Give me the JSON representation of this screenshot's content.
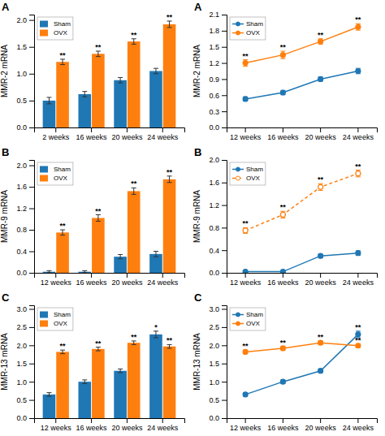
{
  "chart_data": [
    {
      "type": "bar",
      "title": "A",
      "categories": [
        "2 weeks",
        "16 weeks",
        "20 weeks",
        "24 weeks"
      ],
      "series": [
        {
          "name": "Sham",
          "values": [
            0.5,
            0.62,
            0.88,
            1.05
          ],
          "errors": [
            0.06,
            0.05,
            0.05,
            0.05
          ]
        },
        {
          "name": "OVX",
          "values": [
            1.22,
            1.37,
            1.6,
            1.92
          ],
          "errors": [
            0.05,
            0.05,
            0.05,
            0.06
          ],
          "annotations": [
            "**",
            "**",
            "**",
            "**"
          ]
        }
      ],
      "ylabel": "MMR-2 mRNA",
      "ylim": [
        0.0,
        2.1
      ],
      "yticks": [
        {
          "value": 0.0,
          "label": "0.0"
        },
        0.5,
        {
          "value": 1.0,
          "label": "1.0"
        },
        1.5,
        {
          "value": 2.0,
          "label": "2.0"
        }
      ],
      "legend": "upper left",
      "grid": false
    },
    {
      "type": "line",
      "title": "A",
      "categories": [
        "12 weeks",
        "16 weeks",
        "20 weeks",
        "24 weeks"
      ],
      "series": [
        {
          "name": "Sham",
          "values": [
            0.53,
            0.65,
            0.9,
            1.05
          ],
          "errors": [
            0.04,
            0.04,
            0.04,
            0.05
          ],
          "marker": "circle",
          "line_style": "solid"
        },
        {
          "name": "OVX",
          "values": [
            1.2,
            1.35,
            1.6,
            1.87
          ],
          "errors": [
            0.06,
            0.07,
            0.05,
            0.06
          ],
          "marker": "circle",
          "line_style": "solid",
          "annotations": [
            "**",
            "**",
            "**",
            "**"
          ]
        }
      ],
      "ylabel": "MMR-2 mRNA",
      "ylim": [
        0.0,
        2.1
      ],
      "yticks": [
        {
          "value": 0.0,
          "label": "0.0"
        },
        0.3,
        0.6,
        0.9,
        1.2,
        1.5,
        1.8,
        2.1
      ],
      "legend": "upper left",
      "grid": false
    },
    {
      "type": "bar",
      "title": "B",
      "categories": [
        "12 weeks",
        "16 weeks",
        "20 weeks",
        "24 weeks"
      ],
      "series": [
        {
          "name": "Sham",
          "values": [
            0.02,
            0.02,
            0.3,
            0.35
          ],
          "errors": [
            0.02,
            0.02,
            0.04,
            0.05
          ]
        },
        {
          "name": "OVX",
          "values": [
            0.75,
            1.02,
            1.52,
            1.74
          ],
          "errors": [
            0.05,
            0.06,
            0.06,
            0.06
          ],
          "annotations": [
            "**",
            "**",
            "**",
            "**"
          ]
        }
      ],
      "ylabel": "MMR-9 mRNA",
      "ylim": [
        0.0,
        2.1
      ],
      "yticks": [
        {
          "value": 0.0,
          "label": "0.0"
        },
        0.4,
        0.8,
        1.2,
        1.6,
        {
          "value": 2.0,
          "label": "2.0"
        }
      ],
      "legend": "upper left",
      "grid": false
    },
    {
      "type": "line",
      "title": "B",
      "categories": [
        "12 weeks",
        "16 weeks",
        "20 weeks",
        "24 weeks"
      ],
      "series": [
        {
          "name": "Sham",
          "values": [
            0.02,
            0.02,
            0.3,
            0.35
          ],
          "errors": [
            0.02,
            0.02,
            0.03,
            0.04
          ],
          "marker": "circle",
          "line_style": "solid"
        },
        {
          "name": "OVX",
          "values": [
            0.75,
            1.03,
            1.52,
            1.76
          ],
          "errors": [
            0.05,
            0.06,
            0.06,
            0.06
          ],
          "marker": "hollow-circle",
          "line_style": "dashed",
          "annotations": [
            "**",
            "**",
            "**",
            "**"
          ]
        }
      ],
      "ylabel": "MMR-9 mRNA",
      "ylim": [
        0.0,
        2.0
      ],
      "yticks": [
        {
          "value": 0.0,
          "label": "0.0"
        },
        0.4,
        0.8,
        1.2,
        1.6,
        {
          "value": 2.0,
          "label": "2.0"
        }
      ],
      "legend": "upper left",
      "grid": false
    },
    {
      "type": "bar",
      "title": "C",
      "categories": [
        "12 weeks",
        "16 weeks",
        "20 weeks",
        "24 weeks"
      ],
      "series": [
        {
          "name": "Sham",
          "values": [
            0.65,
            1.0,
            1.3,
            2.3
          ],
          "errors": [
            0.05,
            0.05,
            0.05,
            0.09
          ],
          "annotations": [
            null,
            null,
            null,
            "*"
          ]
        },
        {
          "name": "OVX",
          "values": [
            1.82,
            1.9,
            2.07,
            1.97
          ],
          "errors": [
            0.05,
            0.05,
            0.05,
            0.05
          ],
          "annotations": [
            "**",
            "**",
            "**",
            "**"
          ]
        }
      ],
      "ylabel": "MMR-13 mRNA",
      "ylim": [
        0.0,
        3.1
      ],
      "yticks": [
        {
          "value": 0.0,
          "label": "0.0"
        },
        0.5,
        {
          "value": 1.0,
          "label": "1.0"
        },
        1.5,
        {
          "value": 2.0,
          "label": "2.0"
        },
        2.5,
        {
          "value": 3.0,
          "label": "3.0"
        }
      ],
      "legend": "upper left",
      "grid": false
    },
    {
      "type": "line",
      "title": "C",
      "categories": [
        "12 weeks",
        "16 weeks",
        "20 weeks",
        "24 weeks"
      ],
      "series": [
        {
          "name": "Sham",
          "values": [
            0.65,
            1.0,
            1.3,
            2.3
          ],
          "errors": [
            0.05,
            0.05,
            0.05,
            0.09
          ],
          "marker": "circle",
          "line_style": "solid",
          "annotations": [
            null,
            null,
            null,
            "**"
          ]
        },
        {
          "name": "OVX",
          "values": [
            1.82,
            1.92,
            2.07,
            1.99
          ],
          "errors": [
            0.05,
            0.05,
            0.05,
            0.05
          ],
          "marker": "circle",
          "line_style": "solid",
          "annotations": [
            "**",
            "**",
            "**",
            "**"
          ]
        }
      ],
      "ylabel": "MMR-13 mRNA",
      "ylim": [
        0.0,
        3.1
      ],
      "yticks": [
        {
          "value": 0.0,
          "label": "0.0"
        },
        0.5,
        {
          "value": 1.0,
          "label": "1.0"
        },
        1.5,
        {
          "value": 2.0,
          "label": "2.0"
        },
        2.5,
        {
          "value": 3.0,
          "label": "3.0"
        }
      ],
      "legend": "upper left",
      "grid": false
    }
  ]
}
